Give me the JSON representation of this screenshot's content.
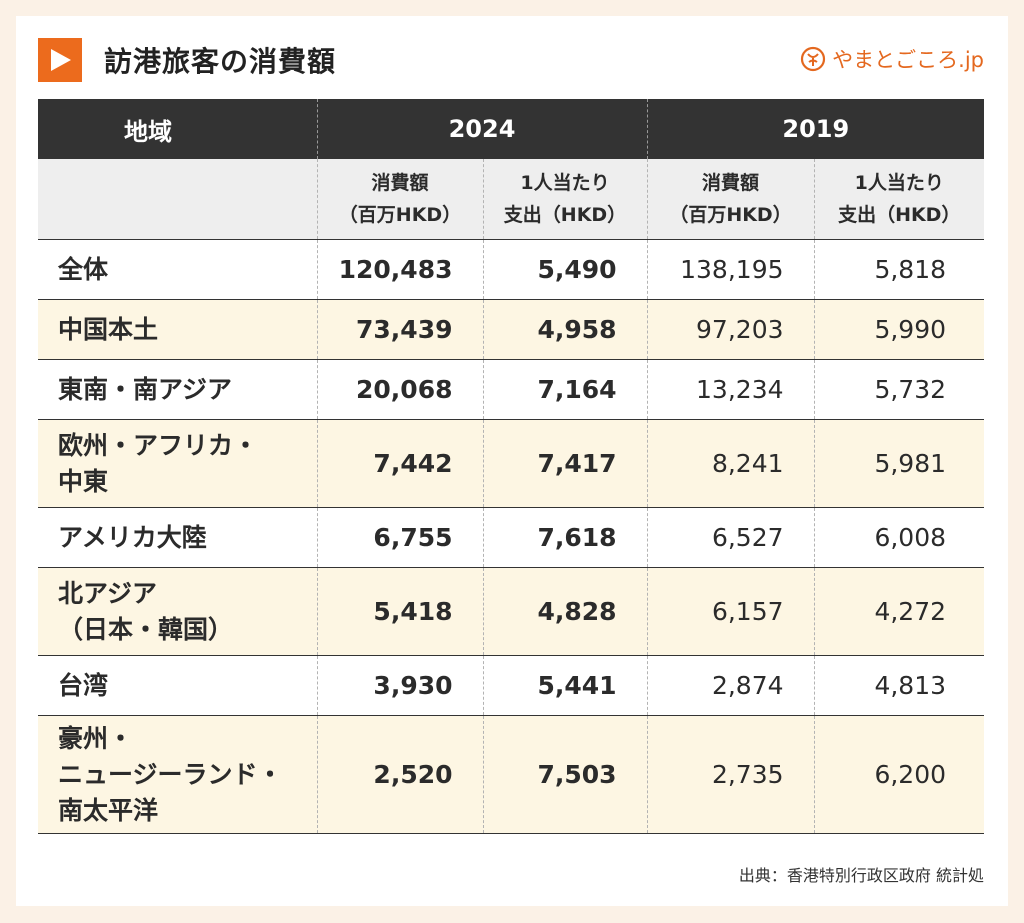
{
  "title": "訪港旅客の消費額",
  "brand": "やまとごころ.jp",
  "colors": {
    "accent": "#ec6b1d",
    "header_bg": "#333333",
    "subheader_bg": "#eeeeee",
    "alt_row_bg": "#fdf6e3",
    "page_bg": "#fbf1e6"
  },
  "icons": {
    "title_marker": "play-icon",
    "brand_logo": "yamatogokoro-logo-icon"
  },
  "table": {
    "region_header": "地域",
    "years": [
      "2024",
      "2019"
    ],
    "sub_headers": [
      [
        "消費額",
        "（百万HKD）"
      ],
      [
        "1人当たり",
        "支出（HKD）"
      ],
      [
        "消費額",
        "（百万HKD）"
      ],
      [
        "1人当たり",
        "支出（HKD）"
      ]
    ],
    "rows": [
      {
        "name": [
          "全体"
        ],
        "values": [
          "120,483",
          "5,490",
          "138,195",
          "5,818"
        ]
      },
      {
        "name": [
          "中国本土"
        ],
        "values": [
          "73,439",
          "4,958",
          "97,203",
          "5,990"
        ]
      },
      {
        "name": [
          "東南・南アジア"
        ],
        "values": [
          "20,068",
          "7,164",
          "13,234",
          "5,732"
        ]
      },
      {
        "name": [
          "欧州・アフリカ・",
          "中東"
        ],
        "values": [
          "7,442",
          "7,417",
          "8,241",
          "5,981"
        ]
      },
      {
        "name": [
          "アメリカ大陸"
        ],
        "values": [
          "6,755",
          "7,618",
          "6,527",
          "6,008"
        ]
      },
      {
        "name": [
          "北アジア",
          "（日本・韓国）"
        ],
        "values": [
          "5,418",
          "4,828",
          "6,157",
          "4,272"
        ]
      },
      {
        "name": [
          "台湾"
        ],
        "values": [
          "3,930",
          "5,441",
          "2,874",
          "4,813"
        ]
      },
      {
        "name": [
          "豪州・",
          "ニュージーランド・",
          "南太平洋"
        ],
        "values": [
          "2,520",
          "7,503",
          "2,735",
          "6,200"
        ]
      }
    ]
  },
  "source": "出典：香港特別行政区政府 統計処"
}
